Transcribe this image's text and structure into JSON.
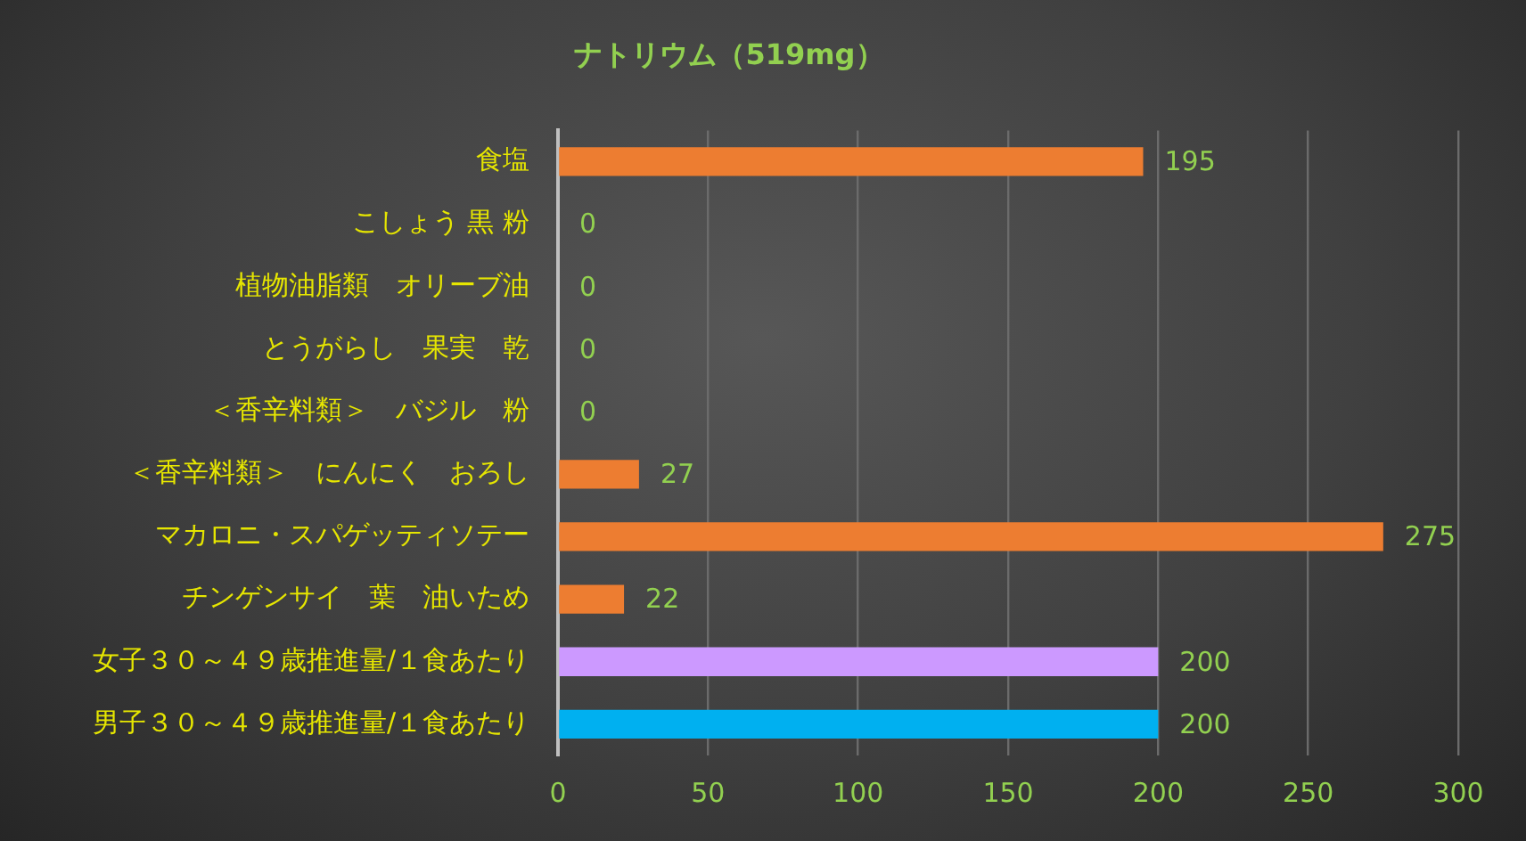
{
  "chart_data": {
    "type": "bar",
    "orientation": "horizontal",
    "title": "ナトリウム（519mg）",
    "categories": [
      "食塩",
      "こしょう 黒 粉",
      "植物油脂類　オリーブ油",
      "とうがらし　果実　乾",
      "＜香辛料類＞　バジル　粉",
      "＜香辛料類＞　にんにく　おろし",
      "マカロニ・スパゲッティソテー",
      "チンゲンサイ　葉　油いため",
      "女子３０～４９歳推進量/１食あたり",
      "男子３０～４９歳推進量/１食あたり"
    ],
    "values": [
      195,
      0,
      0,
      0,
      0,
      27,
      275,
      22,
      200,
      200
    ],
    "colors": [
      "#ed7d31",
      "#ed7d31",
      "#ed7d31",
      "#ed7d31",
      "#ed7d31",
      "#ed7d31",
      "#ed7d31",
      "#ed7d31",
      "#cc99ff",
      "#00b0f0"
    ],
    "xlim": [
      0,
      300
    ],
    "xticks": [
      0,
      50,
      100,
      150,
      200,
      250,
      300
    ],
    "grid": "x",
    "legend": false,
    "data_labels": true
  }
}
